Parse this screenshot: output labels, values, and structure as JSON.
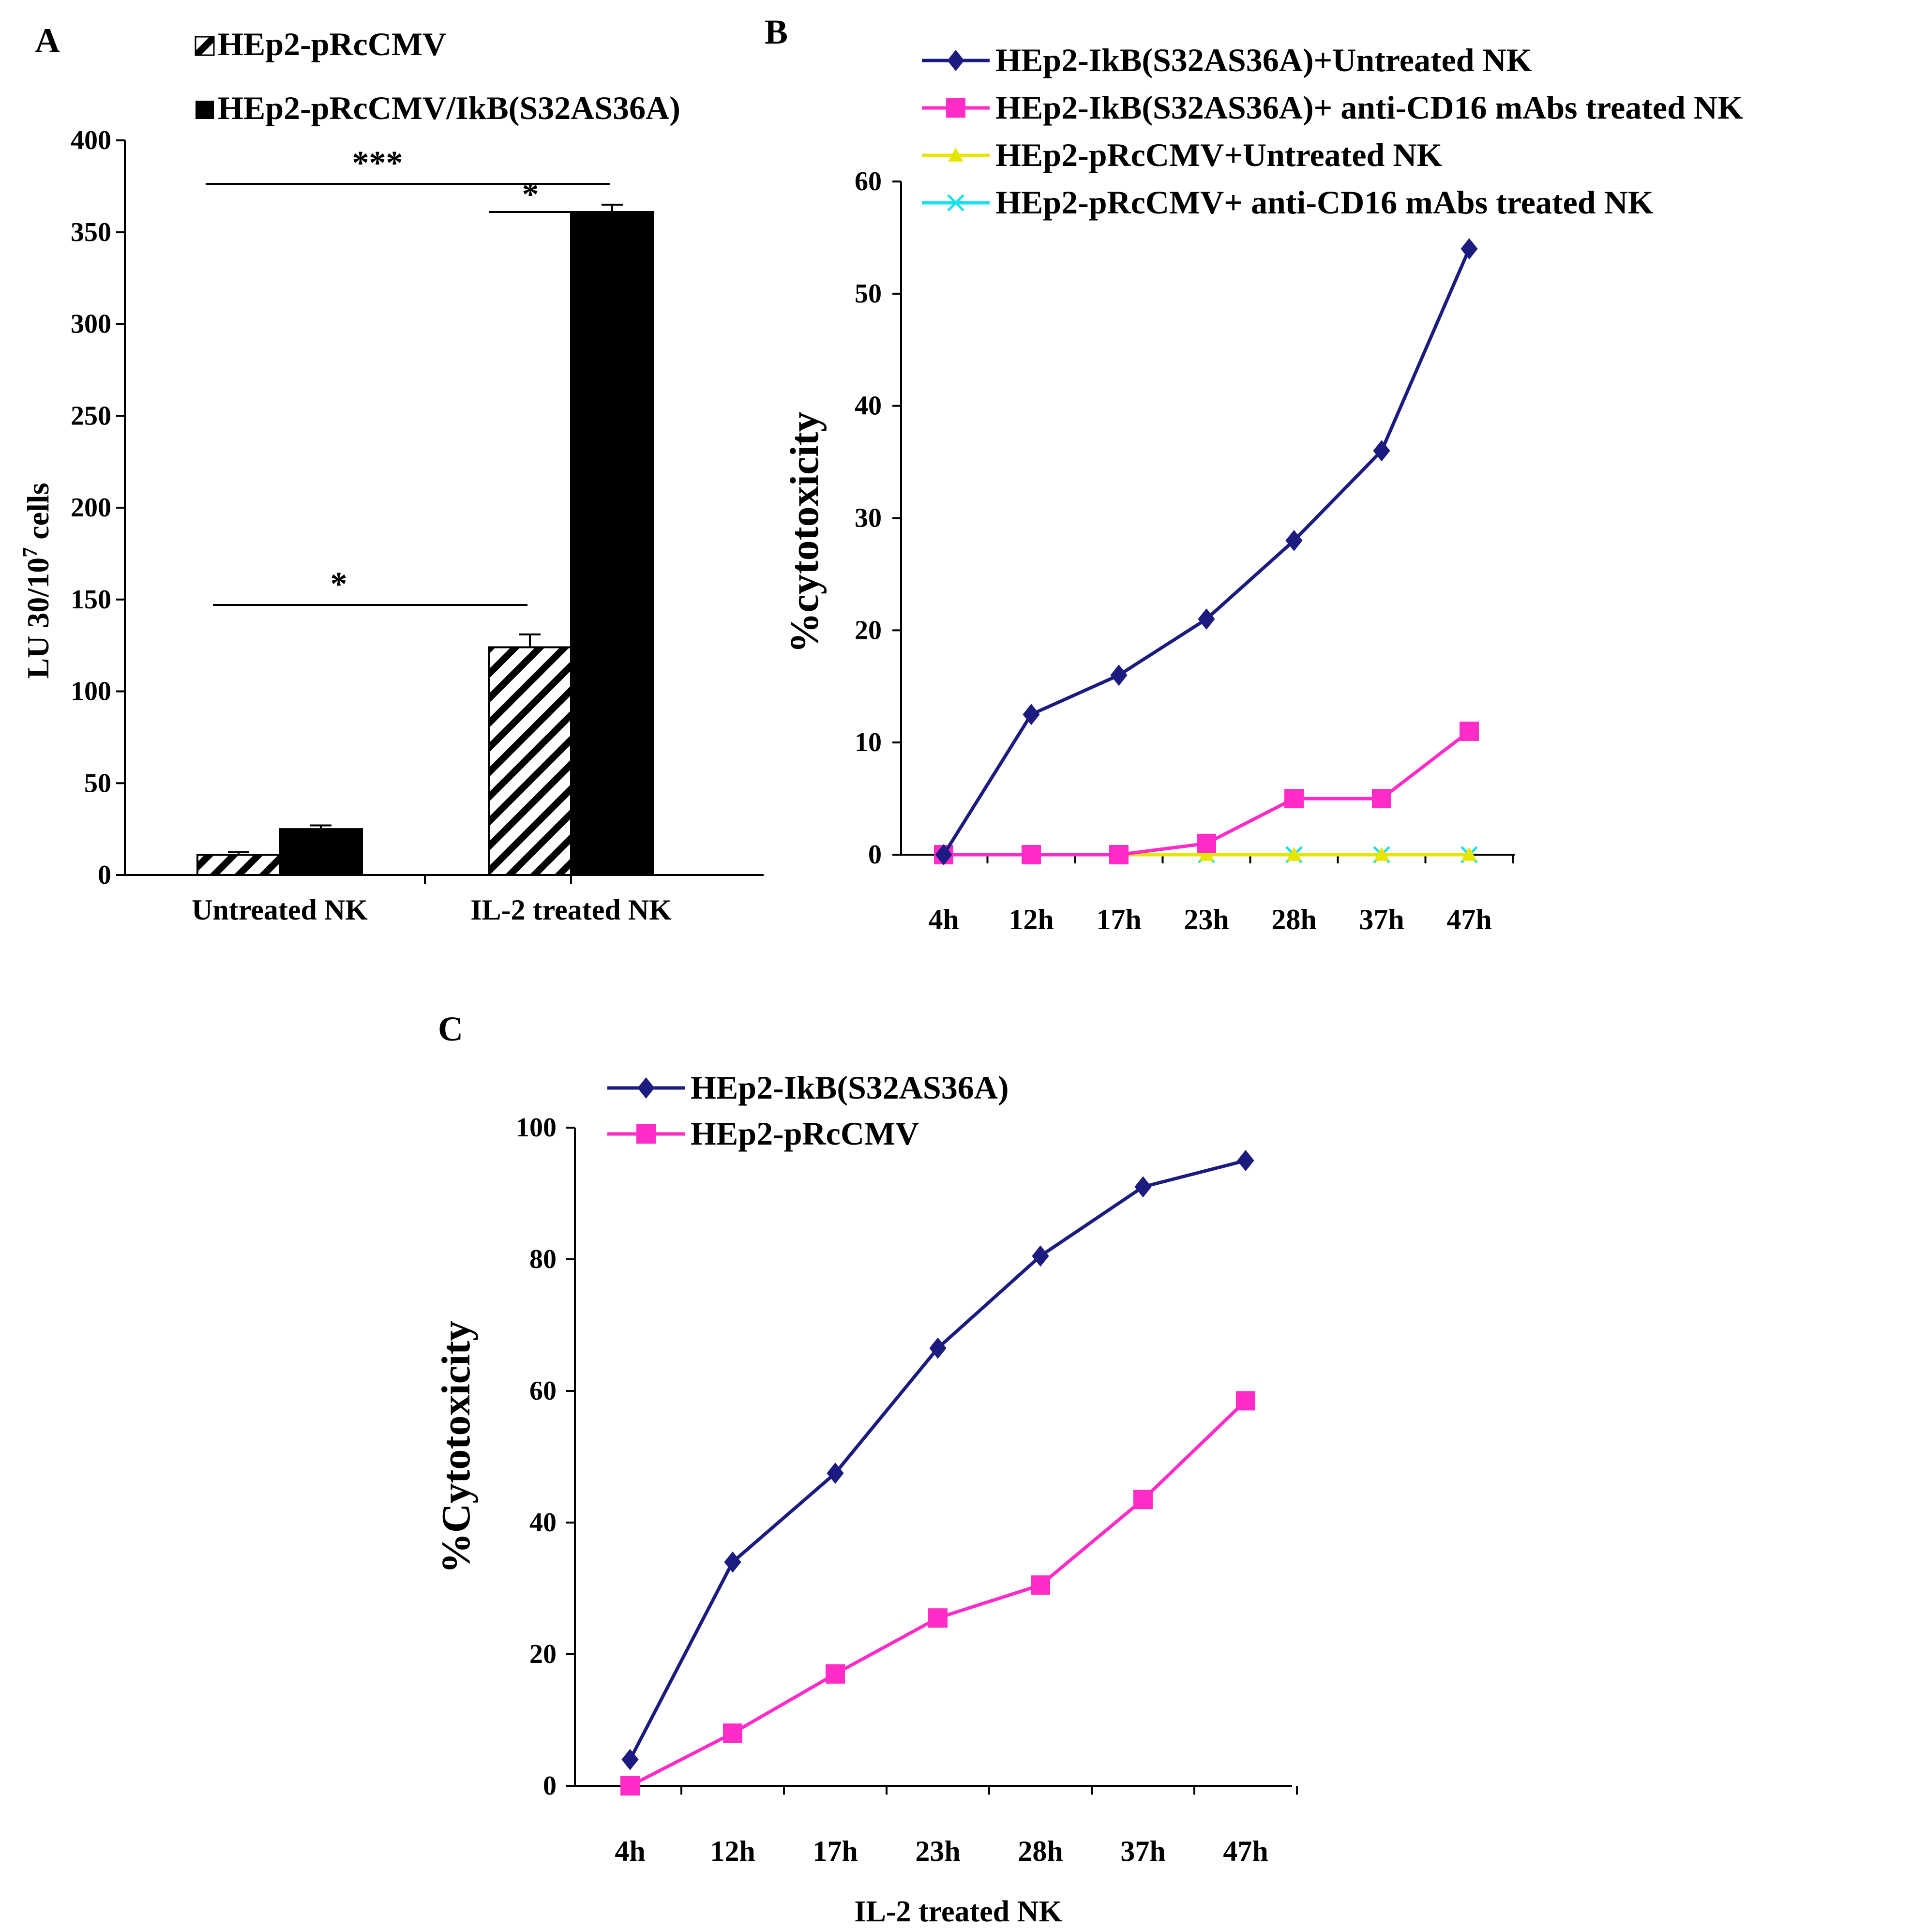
{
  "figure": {
    "panels": [
      "A",
      "B",
      "C"
    ]
  },
  "chart_data": [
    {
      "panel": "A",
      "type": "bar",
      "categories": [
        "Untreated NK",
        "IL-2 treated NK"
      ],
      "series": [
        {
          "name": "HEp2-pRcCMV",
          "values": [
            11,
            124
          ],
          "errors": [
            1.5,
            7
          ],
          "pattern": "hatched",
          "color": "#000000"
        },
        {
          "name": "HEp2-pRcCMV/IkB(S32AS36A)",
          "values": [
            25,
            361
          ],
          "errors": [
            2,
            4
          ],
          "pattern": "solid",
          "color": "#000000"
        }
      ],
      "ylabel_main": "LU 30/10",
      "ylabel_sup": "7",
      "ylabel_tail": " cells",
      "ylim": [
        0,
        400
      ],
      "yticks": [
        "0",
        "50",
        "100",
        "150",
        "200",
        "250",
        "300",
        "350",
        "400"
      ],
      "significance": [
        {
          "label": "***",
          "between": "Untreated NK HEp2-pRcCMV vs IL-2 treated NK HEp2-pRcCMV/IkB(S32AS36A)"
        },
        {
          "label": "*",
          "between": "IL-2 treated NK: HEp2-pRcCMV vs HEp2-pRcCMV/IkB(S32AS36A)"
        },
        {
          "label": "*",
          "between": "Untreated NK HEp2-pRcCMV vs IL-2 treated NK HEp2-pRcCMV"
        }
      ],
      "legend_position": "top-left"
    },
    {
      "panel": "B",
      "type": "line",
      "x": [
        "4h",
        "12h",
        "17h",
        "23h",
        "28h",
        "37h",
        "47h"
      ],
      "series": [
        {
          "name": "HEp2-IkB(S32AS36A)+Untreated NK",
          "values": [
            0,
            12.5,
            16,
            21,
            28,
            36,
            54
          ],
          "color": "#1b1b80",
          "marker": "diamond"
        },
        {
          "name": "HEp2-IkB(S32AS36A)+ anti-CD16 mAbs treated NK",
          "values": [
            0,
            0,
            0,
            1,
            5,
            5,
            11
          ],
          "color": "#ff2cc8",
          "marker": "square"
        },
        {
          "name": "HEp2-pRcCMV+Untreated NK",
          "values": [
            0,
            0,
            0,
            0,
            0,
            0,
            0
          ],
          "color": "#e6e600",
          "marker": "triangle"
        },
        {
          "name": "HEp2-pRcCMV+ anti-CD16 mAbs treated NK",
          "values": [
            0,
            0,
            0,
            0,
            0,
            0,
            0
          ],
          "color": "#19e0ea",
          "marker": "x"
        }
      ],
      "ylabel": "%cytotoxicity",
      "ylim": [
        0,
        60
      ],
      "yticks": [
        "0",
        "10",
        "20",
        "30",
        "40",
        "50",
        "60"
      ],
      "legend_position": "top"
    },
    {
      "panel": "C",
      "type": "line",
      "x": [
        "4h",
        "12h",
        "17h",
        "23h",
        "28h",
        "37h",
        "47h"
      ],
      "series": [
        {
          "name": "HEp2-IkB(S32AS36A)",
          "values": [
            4,
            34,
            47.5,
            66.5,
            80.5,
            91,
            95
          ],
          "color": "#1b1b80",
          "marker": "diamond"
        },
        {
          "name": "HEp2-pRcCMV",
          "values": [
            0,
            8,
            17,
            25.5,
            30.5,
            43.5,
            58.5
          ],
          "color": "#ff2cc8",
          "marker": "square"
        }
      ],
      "xlabel": "IL-2 treated NK",
      "ylabel": "%Cytotoxicity",
      "ylim": [
        0,
        100
      ],
      "yticks": [
        "0",
        "20",
        "40",
        "60",
        "80",
        "100"
      ],
      "legend_position": "top-left"
    }
  ]
}
